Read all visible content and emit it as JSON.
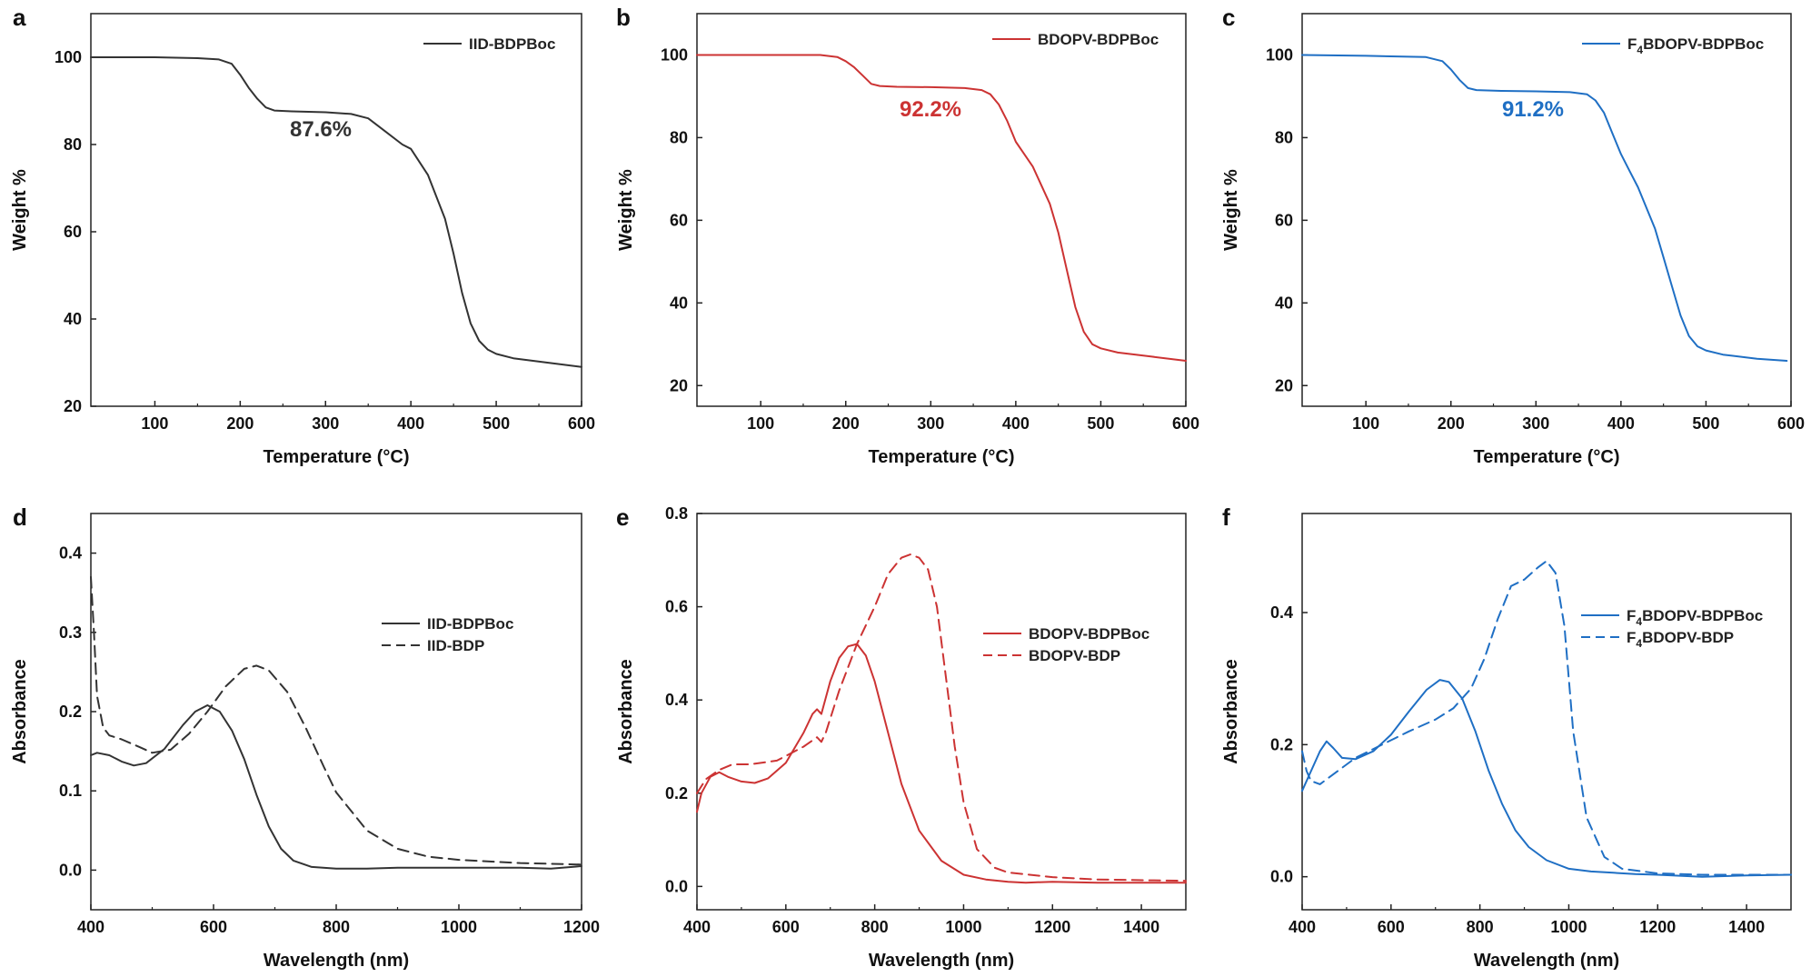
{
  "colors": {
    "black": "#333333",
    "red": "#cc3333",
    "blue": "#1f6fc4"
  },
  "chart_data": [
    {
      "panel": "a",
      "type": "line",
      "xlabel": "Temperature (°C)",
      "ylabel": "Weight %",
      "xlim": [
        25,
        600
      ],
      "ylim": [
        20,
        110
      ],
      "xticks": [
        100,
        200,
        300,
        400,
        500,
        600
      ],
      "yticks": [
        20,
        40,
        60,
        80,
        100
      ],
      "annotation": "87.6%",
      "annotation_color": "black",
      "legend": "top-right",
      "series": [
        {
          "name": "IID-BDPBoc",
          "color": "black",
          "dash": "solid",
          "x": [
            25,
            100,
            150,
            175,
            190,
            200,
            210,
            220,
            230,
            240,
            260,
            300,
            330,
            350,
            370,
            390,
            400,
            420,
            440,
            450,
            460,
            470,
            480,
            490,
            500,
            520,
            560,
            600
          ],
          "y": [
            100,
            100,
            99.8,
            99.5,
            98.5,
            96,
            93,
            90.5,
            88.5,
            87.8,
            87.6,
            87.4,
            87,
            86,
            83,
            80,
            79,
            73,
            63,
            55,
            46,
            39,
            35,
            33,
            32,
            31,
            30,
            29
          ]
        }
      ]
    },
    {
      "panel": "b",
      "type": "line",
      "xlabel": "Temperature (°C)",
      "ylabel": "Weight %",
      "xlim": [
        25,
        600
      ],
      "ylim": [
        15,
        110
      ],
      "xticks": [
        100,
        200,
        300,
        400,
        500,
        600
      ],
      "yticks": [
        20,
        40,
        60,
        80,
        100
      ],
      "annotation": "92.2%",
      "annotation_color": "red",
      "legend": "top-right",
      "series": [
        {
          "name": "BDOPV-BDPBoc",
          "color": "red",
          "dash": "solid",
          "x": [
            25,
            100,
            170,
            190,
            200,
            210,
            220,
            230,
            240,
            260,
            300,
            340,
            360,
            370,
            380,
            390,
            400,
            410,
            420,
            440,
            450,
            460,
            470,
            480,
            490,
            500,
            520,
            560,
            600
          ],
          "y": [
            100,
            100,
            100,
            99.5,
            98.5,
            97,
            95,
            93,
            92.5,
            92.3,
            92.2,
            92,
            91.5,
            90.5,
            88,
            84,
            79,
            76,
            73,
            64,
            57,
            48,
            39,
            33,
            30,
            29,
            28,
            27,
            26
          ]
        }
      ]
    },
    {
      "panel": "c",
      "type": "line",
      "xlabel": "Temperature (°C)",
      "ylabel": "Weight %",
      "xlim": [
        25,
        600
      ],
      "ylim": [
        15,
        110
      ],
      "xticks": [
        100,
        200,
        300,
        400,
        500,
        600
      ],
      "yticks": [
        20,
        40,
        60,
        80,
        100
      ],
      "annotation": "91.2%",
      "annotation_color": "blue",
      "legend": "top-right",
      "series": [
        {
          "name": "F4BDOPV-BDPBoc",
          "name_pre": "F",
          "name_sub": "4",
          "name_post": "BDOPV-BDPBoc",
          "color": "blue",
          "dash": "solid",
          "x": [
            25,
            100,
            170,
            190,
            200,
            210,
            220,
            230,
            260,
            300,
            340,
            360,
            370,
            380,
            390,
            400,
            410,
            420,
            440,
            450,
            460,
            470,
            480,
            490,
            500,
            520,
            560,
            595
          ],
          "y": [
            100,
            99.8,
            99.5,
            98.5,
            96.5,
            94,
            92,
            91.5,
            91.3,
            91.2,
            91,
            90.5,
            89,
            86,
            81,
            76,
            72,
            68,
            58,
            51,
            44,
            37,
            32,
            29.5,
            28.5,
            27.5,
            26.5,
            26
          ]
        }
      ]
    },
    {
      "panel": "d",
      "type": "line",
      "xlabel": "Wavelength (nm)",
      "ylabel": "Absorbance",
      "xlim": [
        400,
        1200
      ],
      "ylim": [
        -0.05,
        0.45
      ],
      "xticks": [
        400,
        600,
        800,
        1000,
        1200
      ],
      "yticks": [
        0.0,
        0.1,
        0.2,
        0.3,
        0.4
      ],
      "legend": "center-right",
      "series": [
        {
          "name": "IID-BDPBoc",
          "color": "black",
          "dash": "solid",
          "x": [
            400,
            410,
            430,
            450,
            470,
            490,
            520,
            550,
            570,
            590,
            610,
            630,
            650,
            670,
            690,
            710,
            730,
            760,
            800,
            850,
            900,
            1000,
            1100,
            1150,
            1200
          ],
          "y": [
            0.145,
            0.148,
            0.145,
            0.137,
            0.132,
            0.135,
            0.153,
            0.183,
            0.2,
            0.208,
            0.2,
            0.176,
            0.14,
            0.095,
            0.055,
            0.027,
            0.012,
            0.004,
            0.002,
            0.002,
            0.003,
            0.003,
            0.003,
            0.002,
            0.005
          ]
        },
        {
          "name": "IID-BDP",
          "color": "black",
          "dash": "dash",
          "x": [
            400,
            405,
            410,
            420,
            430,
            450,
            480,
            500,
            530,
            560,
            590,
            620,
            650,
            670,
            690,
            720,
            750,
            780,
            800,
            850,
            900,
            950,
            1000,
            1100,
            1200
          ],
          "y": [
            0.37,
            0.3,
            0.22,
            0.18,
            0.17,
            0.165,
            0.155,
            0.148,
            0.152,
            0.172,
            0.2,
            0.232,
            0.254,
            0.258,
            0.252,
            0.225,
            0.18,
            0.13,
            0.098,
            0.05,
            0.027,
            0.017,
            0.013,
            0.009,
            0.007
          ]
        }
      ]
    },
    {
      "panel": "e",
      "type": "line",
      "xlabel": "Wavelength (nm)",
      "ylabel": "Absorbance",
      "xlim": [
        400,
        1500
      ],
      "ylim": [
        -0.05,
        0.8
      ],
      "xticks": [
        400,
        600,
        800,
        1000,
        1200,
        1400
      ],
      "yticks": [
        0.0,
        0.2,
        0.4,
        0.6,
        0.8
      ],
      "legend": "center-right",
      "series": [
        {
          "name": "BDOPV-BDPBoc",
          "color": "red",
          "dash": "solid",
          "x": [
            400,
            410,
            430,
            450,
            470,
            500,
            530,
            560,
            600,
            640,
            660,
            670,
            680,
            700,
            720,
            740,
            760,
            780,
            800,
            830,
            860,
            900,
            950,
            1000,
            1050,
            1100,
            1140,
            1200,
            1300,
            1500
          ],
          "y": [
            0.16,
            0.2,
            0.235,
            0.245,
            0.235,
            0.225,
            0.222,
            0.232,
            0.265,
            0.33,
            0.37,
            0.38,
            0.37,
            0.44,
            0.49,
            0.515,
            0.52,
            0.495,
            0.44,
            0.33,
            0.22,
            0.12,
            0.055,
            0.025,
            0.015,
            0.01,
            0.008,
            0.01,
            0.008,
            0.008
          ]
        },
        {
          "name": "BDOPV-BDP",
          "color": "red",
          "dash": "dash",
          "x": [
            400,
            420,
            450,
            480,
            520,
            580,
            640,
            670,
            680,
            690,
            720,
            760,
            800,
            830,
            860,
            880,
            900,
            920,
            940,
            960,
            980,
            1000,
            1030,
            1070,
            1100,
            1200,
            1300,
            1500
          ],
          "y": [
            0.2,
            0.23,
            0.25,
            0.262,
            0.262,
            0.27,
            0.3,
            0.32,
            0.31,
            0.33,
            0.42,
            0.52,
            0.6,
            0.67,
            0.705,
            0.712,
            0.705,
            0.68,
            0.6,
            0.45,
            0.3,
            0.18,
            0.08,
            0.04,
            0.03,
            0.02,
            0.015,
            0.012
          ]
        }
      ]
    },
    {
      "panel": "f",
      "type": "line",
      "xlabel": "Wavelength (nm)",
      "ylabel": "Absorbance",
      "xlim": [
        400,
        1500
      ],
      "ylim": [
        -0.05,
        0.55
      ],
      "xticks": [
        400,
        600,
        800,
        1000,
        1200,
        1400
      ],
      "yticks": [
        0.0,
        0.2,
        0.4
      ],
      "legend": "center-right",
      "series": [
        {
          "name": "F4BDOPV-BDPBoc",
          "name_pre": "F",
          "name_sub": "4",
          "name_post": "BDOPV-BDPBoc",
          "color": "blue",
          "dash": "solid",
          "x": [
            400,
            420,
            440,
            455,
            470,
            490,
            520,
            560,
            600,
            640,
            680,
            710,
            730,
            760,
            790,
            820,
            850,
            880,
            910,
            950,
            1000,
            1050,
            1100,
            1150,
            1200,
            1300,
            1400,
            1500
          ],
          "y": [
            0.13,
            0.16,
            0.19,
            0.205,
            0.195,
            0.18,
            0.178,
            0.19,
            0.215,
            0.25,
            0.283,
            0.298,
            0.295,
            0.27,
            0.22,
            0.16,
            0.11,
            0.07,
            0.045,
            0.025,
            0.012,
            0.008,
            0.006,
            0.004,
            0.003,
            0.0,
            0.002,
            0.003
          ]
        },
        {
          "name": "F4BDOPV-BDP",
          "name_pre": "F",
          "name_sub": "4",
          "name_post": "BDOPV-BDP",
          "color": "blue",
          "dash": "dash",
          "x": [
            400,
            410,
            420,
            440,
            480,
            520,
            580,
            640,
            700,
            740,
            780,
            810,
            840,
            870,
            900,
            930,
            950,
            970,
            990,
            1010,
            1040,
            1080,
            1120,
            1200,
            1300,
            1500
          ],
          "y": [
            0.19,
            0.16,
            0.145,
            0.14,
            0.16,
            0.18,
            0.2,
            0.22,
            0.238,
            0.255,
            0.285,
            0.33,
            0.39,
            0.44,
            0.45,
            0.468,
            0.478,
            0.46,
            0.38,
            0.22,
            0.09,
            0.03,
            0.012,
            0.005,
            0.003,
            0.003
          ]
        }
      ]
    }
  ]
}
